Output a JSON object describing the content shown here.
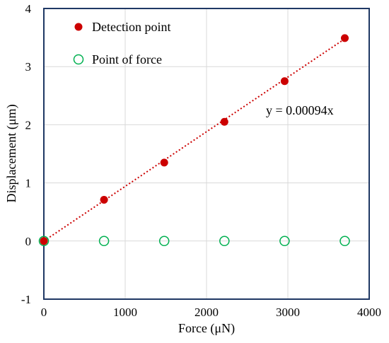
{
  "chart_data": {
    "type": "scatter",
    "xlabel": "Force (μN)",
    "ylabel": "Displacement (μm)",
    "xlim": [
      0,
      4000
    ],
    "ylim": [
      -1,
      4
    ],
    "xticks": [
      0,
      1000,
      2000,
      3000,
      4000
    ],
    "yticks": [
      -1,
      0,
      1,
      2,
      3,
      4
    ],
    "grid": true,
    "legend_position": "top-left",
    "series": [
      {
        "name": "Detection point",
        "marker": "filled-circle",
        "color": "#cc0000",
        "x": [
          0,
          740,
          1480,
          2220,
          2960,
          3700
        ],
        "y": [
          0,
          0.71,
          1.35,
          2.05,
          2.75,
          3.49
        ]
      },
      {
        "name": "Point of force",
        "marker": "open-circle",
        "color": "#00b050",
        "x": [
          0,
          740,
          1480,
          2220,
          2960,
          3700
        ],
        "y": [
          0,
          0,
          0,
          0,
          0,
          0
        ]
      }
    ],
    "trendline": {
      "slope": 0.00094,
      "x_range": [
        0,
        3700
      ],
      "style": "dotted",
      "color": "#cc0000",
      "label": "y = 0.00094x"
    }
  }
}
